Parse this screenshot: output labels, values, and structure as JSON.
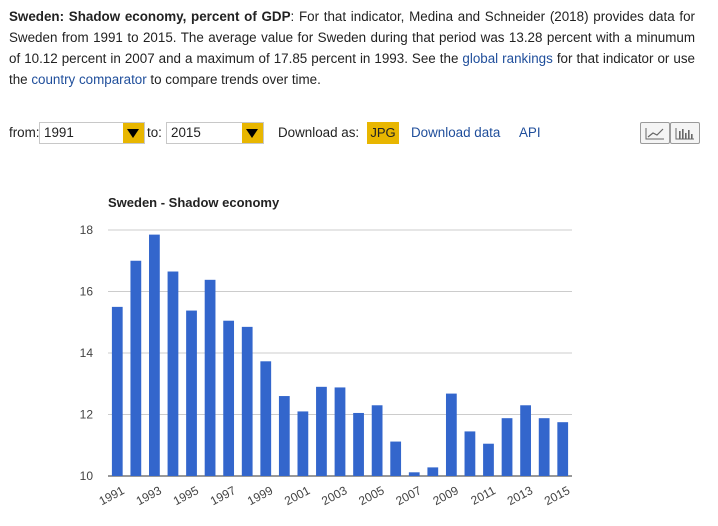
{
  "description": {
    "title": "Sweden: Shadow economy, percent of GDP",
    "text_1": ": For that indicator, Medina and Schneider (2018) provides data for Sweden from 1991 to 2015. The average value for Sweden during that period was 13.28 percent with a minumum of 10.12 percent in 2007 and a maximum of 17.85 percent in 1993. See the ",
    "link_rankings": "global rankings",
    "text_2": " for that indicator or use the ",
    "link_comparator": "country comparator",
    "text_3": " to compare trends over time.",
    "link_color": "#1f4e9b"
  },
  "controls": {
    "from_label": "from:",
    "from_value": "1991",
    "to_label": "to:",
    "to_value": "2015",
    "download_label": "Download as:",
    "jpg_label": "JPG",
    "download_data_label": "Download data",
    "api_label": "API",
    "accent_color": "#e8b600",
    "view_icons": [
      "line-chart-icon",
      "bar-chart-icon"
    ]
  },
  "chart_data": {
    "type": "bar",
    "title": "Sweden - Shadow economy",
    "xlabel": "",
    "ylabel": "",
    "categories": [
      "1991",
      "1992",
      "1993",
      "1994",
      "1995",
      "1996",
      "1997",
      "1998",
      "1999",
      "2000",
      "2001",
      "2002",
      "2003",
      "2004",
      "2005",
      "2006",
      "2007",
      "2008",
      "2009",
      "2010",
      "2011",
      "2012",
      "2013",
      "2014",
      "2015"
    ],
    "x_tick_labels": [
      "1991",
      "1993",
      "1995",
      "1997",
      "1999",
      "2001",
      "2003",
      "2005",
      "2007",
      "2009",
      "2011",
      "2013",
      "2015"
    ],
    "values": [
      15.5,
      17.0,
      17.85,
      16.65,
      15.38,
      16.38,
      15.05,
      14.85,
      13.73,
      12.6,
      12.1,
      12.9,
      12.88,
      12.05,
      12.3,
      11.12,
      10.12,
      10.28,
      12.68,
      11.45,
      11.05,
      11.88,
      12.3,
      11.88,
      11.75
    ],
    "ylim": [
      10,
      18
    ],
    "yticks": [
      10,
      12,
      14,
      16,
      18
    ],
    "grid": true,
    "legend": "none",
    "bar_color": "#3366cc"
  }
}
